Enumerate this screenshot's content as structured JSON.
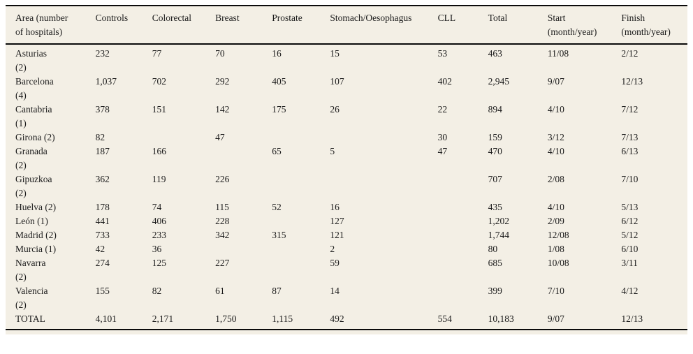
{
  "colors": {
    "panel_background": "#f3efe5",
    "rule": "#0a0a0a",
    "text": "#1b1b1b",
    "page_background": "#ffffff"
  },
  "table": {
    "columns": [
      {
        "key": "area",
        "label": "Area (number\nof hospitals)"
      },
      {
        "key": "controls",
        "label": "Controls"
      },
      {
        "key": "colorectal",
        "label": "Colorectal"
      },
      {
        "key": "breast",
        "label": "Breast"
      },
      {
        "key": "prostate",
        "label": "Prostate"
      },
      {
        "key": "stomach",
        "label": "Stomach/Oesophagus"
      },
      {
        "key": "cll",
        "label": "CLL"
      },
      {
        "key": "total",
        "label": "Total"
      },
      {
        "key": "start",
        "label": "Start\n(month/year)"
      },
      {
        "key": "finish",
        "label": "Finish\n(month/year)"
      }
    ],
    "rows": [
      {
        "id": "asturias",
        "area": "Asturias\n(2)",
        "controls": "232",
        "colorectal": "77",
        "breast": "70",
        "prostate": "16",
        "stomach": "15",
        "cll": "53",
        "total": "463",
        "start": "11/08",
        "finish": "2/12"
      },
      {
        "id": "barcelona",
        "area": "Barcelona\n(4)",
        "controls": "1,037",
        "colorectal": "702",
        "breast": "292",
        "prostate": "405",
        "stomach": "107",
        "cll": "402",
        "total": "2,945",
        "start": "9/07",
        "finish": "12/13"
      },
      {
        "id": "cantabria",
        "area": "Cantabria\n(1)",
        "controls": "378",
        "colorectal": "151",
        "breast": "142",
        "prostate": "175",
        "stomach": "26",
        "cll": "22",
        "total": "894",
        "start": "4/10",
        "finish": "7/12"
      },
      {
        "id": "girona",
        "area": "Girona (2)",
        "controls": "82",
        "colorectal": "",
        "breast": "47",
        "prostate": "",
        "stomach": "",
        "cll": "30",
        "total": "159",
        "start": "3/12",
        "finish": "7/13"
      },
      {
        "id": "granada",
        "area": "Granada\n(2)",
        "controls": "187",
        "colorectal": "166",
        "breast": "",
        "prostate": "65",
        "stomach": "5",
        "cll": "47",
        "total": "470",
        "start": "4/10",
        "finish": "6/13"
      },
      {
        "id": "gipuzkoa",
        "area": "Gipuzkoa\n(2)",
        "controls": "362",
        "colorectal": "119",
        "breast": "226",
        "prostate": "",
        "stomach": "",
        "cll": "",
        "total": "707",
        "start": "2/08",
        "finish": "7/10"
      },
      {
        "id": "huelva",
        "area": "Huelva (2)",
        "controls": "178",
        "colorectal": "74",
        "breast": "115",
        "prostate": "52",
        "stomach": "16",
        "cll": "",
        "total": "435",
        "start": "4/10",
        "finish": "5/13"
      },
      {
        "id": "leon",
        "area": "León (1)",
        "controls": "441",
        "colorectal": "406",
        "breast": "228",
        "prostate": "",
        "stomach": "127",
        "cll": "",
        "total": "1,202",
        "start": "2/09",
        "finish": "6/12"
      },
      {
        "id": "madrid",
        "area": "Madrid (2)",
        "controls": "733",
        "colorectal": "233",
        "breast": "342",
        "prostate": "315",
        "stomach": "121",
        "cll": "",
        "total": "1,744",
        "start": "12/08",
        "finish": "5/12"
      },
      {
        "id": "murcia",
        "area": "Murcia (1)",
        "controls": "42",
        "colorectal": "36",
        "breast": "",
        "prostate": "",
        "stomach": "2",
        "cll": "",
        "total": "80",
        "start": "1/08",
        "finish": "6/10"
      },
      {
        "id": "navarra",
        "area": "Navarra\n(2)",
        "controls": "274",
        "colorectal": "125",
        "breast": "227",
        "prostate": "",
        "stomach": "59",
        "cll": "",
        "total": "685",
        "start": "10/08",
        "finish": "3/11"
      },
      {
        "id": "valencia",
        "area": "Valencia\n(2)",
        "controls": "155",
        "colorectal": "82",
        "breast": "61",
        "prostate": "87",
        "stomach": "14",
        "cll": "",
        "total": "399",
        "start": "7/10",
        "finish": "4/12"
      },
      {
        "id": "total",
        "area": "TOTAL",
        "controls": "4,101",
        "colorectal": "2,171",
        "breast": "1,750",
        "prostate": "1,115",
        "stomach": "492",
        "cll": "554",
        "total": "10,183",
        "start": "9/07",
        "finish": "12/13"
      }
    ]
  }
}
